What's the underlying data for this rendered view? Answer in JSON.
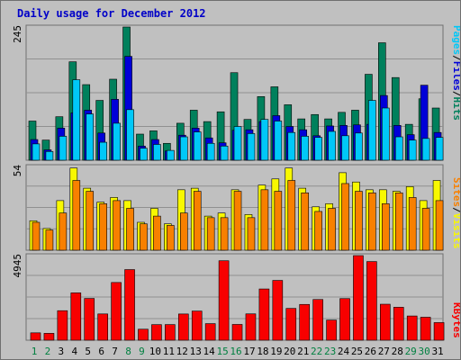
{
  "title": "Daily usage for December 2012",
  "colors": {
    "hits": "#00805c",
    "files": "#0000d8",
    "pages": "#00c8f8",
    "visits": "#f8f800",
    "sites": "#f88000",
    "kbytes": "#f80000",
    "weekday_label": "#000000",
    "weekend_label": "#008040",
    "title": "#0000c8"
  },
  "chart_data": [
    {
      "type": "bar",
      "panel": "hits-files-pages",
      "x": [
        "1",
        "2",
        "3",
        "4",
        "5",
        "6",
        "7",
        "8",
        "9",
        "10",
        "11",
        "12",
        "13",
        "14",
        "15",
        "16",
        "17",
        "18",
        "19",
        "20",
        "21",
        "22",
        "23",
        "24",
        "25",
        "26",
        "27",
        "28",
        "29",
        "30",
        "31"
      ],
      "weekend_days": [
        "1",
        "2",
        "8",
        "9",
        "15",
        "16",
        "22",
        "23",
        "29",
        "30"
      ],
      "ylim": [
        0,
        245
      ],
      "tick_label": "245",
      "legend": [
        "Pages",
        "/",
        "Files",
        "/",
        "Hits"
      ],
      "series": [
        {
          "name": "Hits",
          "values": [
            72,
            37,
            80,
            181,
            139,
            110,
            149,
            245,
            48,
            54,
            31,
            68,
            92,
            71,
            89,
            161,
            75,
            117,
            135,
            102,
            76,
            84,
            76,
            88,
            92,
            158,
            216,
            152,
            66,
            113,
            96
          ]
        },
        {
          "name": "Files",
          "values": [
            38,
            19,
            59,
            87,
            92,
            50,
            112,
            191,
            26,
            38,
            17,
            46,
            59,
            41,
            32,
            55,
            56,
            71,
            82,
            62,
            56,
            45,
            63,
            64,
            65,
            66,
            119,
            64,
            47,
            138,
            51
          ]
        },
        {
          "name": "Pages",
          "values": [
            30,
            16,
            44,
            148,
            85,
            33,
            68,
            93,
            22,
            29,
            18,
            43,
            52,
            31,
            26,
            62,
            49,
            75,
            72,
            51,
            44,
            42,
            53,
            45,
            50,
            110,
            96,
            43,
            37,
            40,
            42
          ]
        }
      ]
    },
    {
      "type": "bar",
      "panel": "visits-sites",
      "x": [
        "1",
        "2",
        "3",
        "4",
        "5",
        "6",
        "7",
        "8",
        "9",
        "10",
        "11",
        "12",
        "13",
        "14",
        "15",
        "16",
        "17",
        "18",
        "19",
        "20",
        "21",
        "22",
        "23",
        "24",
        "25",
        "26",
        "27",
        "28",
        "29",
        "30",
        "31"
      ],
      "ylim": [
        0,
        54
      ],
      "tick_label": "54",
      "legend": [
        "Sites",
        "/",
        "Visits"
      ],
      "series": [
        {
          "name": "Visits",
          "values": [
            19,
            14,
            32,
            53,
            40,
            31,
            34,
            32,
            18,
            27,
            17,
            39,
            40,
            22,
            24,
            39,
            23,
            42,
            46,
            53,
            40,
            28,
            30,
            50,
            44,
            39,
            39,
            38,
            41,
            32,
            45
          ]
        },
        {
          "name": "Sites",
          "values": [
            18,
            13,
            24,
            45,
            38,
            30,
            32,
            27,
            17,
            22,
            16,
            24,
            38,
            21,
            21,
            38,
            21,
            39,
            38,
            45,
            37,
            25,
            27,
            43,
            38,
            37,
            30,
            37,
            34,
            27,
            32
          ]
        }
      ]
    },
    {
      "type": "bar",
      "panel": "kbytes",
      "x": [
        "1",
        "2",
        "3",
        "4",
        "5",
        "6",
        "7",
        "8",
        "9",
        "10",
        "11",
        "12",
        "13",
        "14",
        "15",
        "16",
        "17",
        "18",
        "19",
        "20",
        "21",
        "22",
        "23",
        "24",
        "25",
        "26",
        "27",
        "28",
        "29",
        "30",
        "31"
      ],
      "ylim": [
        0,
        4945
      ],
      "tick_label": "4945",
      "legend": [
        "KBytes"
      ],
      "series": [
        {
          "name": "KBytes",
          "values": [
            430,
            402,
            1725,
            2766,
            2441,
            1535,
            3373,
            4128,
            643,
            910,
            914,
            1532,
            1703,
            969,
            4644,
            922,
            1539,
            2995,
            3495,
            1858,
            2091,
            2380,
            1176,
            2433,
            4945,
            4597,
            2103,
            1926,
            1416,
            1343,
            1030
          ]
        }
      ]
    }
  ]
}
